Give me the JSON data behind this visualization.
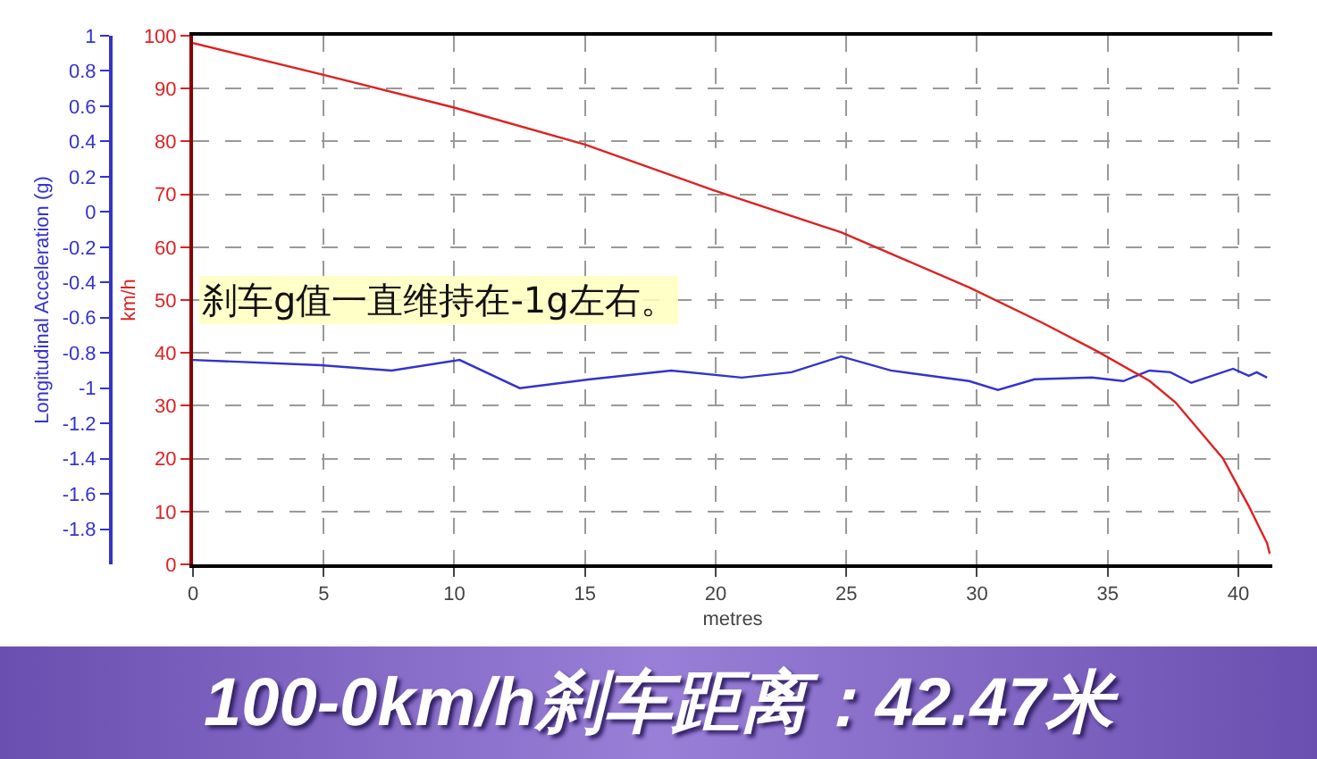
{
  "chart_data": {
    "type": "line",
    "title": "100-0km/h刹车距离：42.47米",
    "xlabel": "metres",
    "ylabel": "Longitudinal Acceleration (g)",
    "y2label": "km/h",
    "annotations": [
      "刹车g值一直维持在-1g左右。"
    ],
    "xlim": [
      0,
      41.3
    ],
    "xticks": [
      0,
      5,
      10,
      15,
      20,
      25,
      30,
      35,
      40
    ],
    "ylim": [
      -2,
      1
    ],
    "yticks": [
      1,
      0.8,
      0.6,
      0.4,
      0.2,
      0,
      -0.2,
      -0.4,
      -0.6,
      -0.8,
      -1,
      -1.2,
      -1.4,
      -1.6,
      -1.8
    ],
    "y2lim": [
      0,
      100
    ],
    "y2ticks": [
      0,
      10,
      20,
      30,
      40,
      50,
      60,
      70,
      80,
      90,
      100
    ],
    "grid": true,
    "marker": "none",
    "line_style": "solid",
    "series": [
      {
        "color": "#3333cc",
        "x": [
          0,
          4.9,
          7.6,
          10.2,
          12.5,
          15.2,
          18.3,
          21.0,
          22.9,
          24.8,
          26.7,
          29.7,
          30.8,
          32.2,
          34.4,
          35.6,
          36.6,
          37.4,
          38.2,
          39.8,
          40.4,
          40.7,
          41.1
        ],
        "values": [
          -0.84,
          -0.87,
          -0.9,
          -0.84,
          -1.0,
          -0.95,
          -0.9,
          -0.94,
          -0.91,
          -0.82,
          -0.9,
          -0.96,
          -1.01,
          -0.95,
          -0.94,
          -0.96,
          -0.9,
          -0.91,
          -0.97,
          -0.89,
          -0.93,
          -0.91,
          -0.94
        ]
      },
      {
        "color": "#dd2222",
        "axis": "y2",
        "x": [
          0,
          5,
          10,
          15,
          19.9,
          24.8,
          29.7,
          32.5,
          34.6,
          36.6,
          37.6,
          39.4,
          40.4,
          41.1,
          41.2
        ],
        "values": [
          98.6,
          92.6,
          86.4,
          79.4,
          70.8,
          62.8,
          52.4,
          45.7,
          40.3,
          34.7,
          30.6,
          20.1,
          11,
          4,
          2
        ]
      }
    ]
  }
}
